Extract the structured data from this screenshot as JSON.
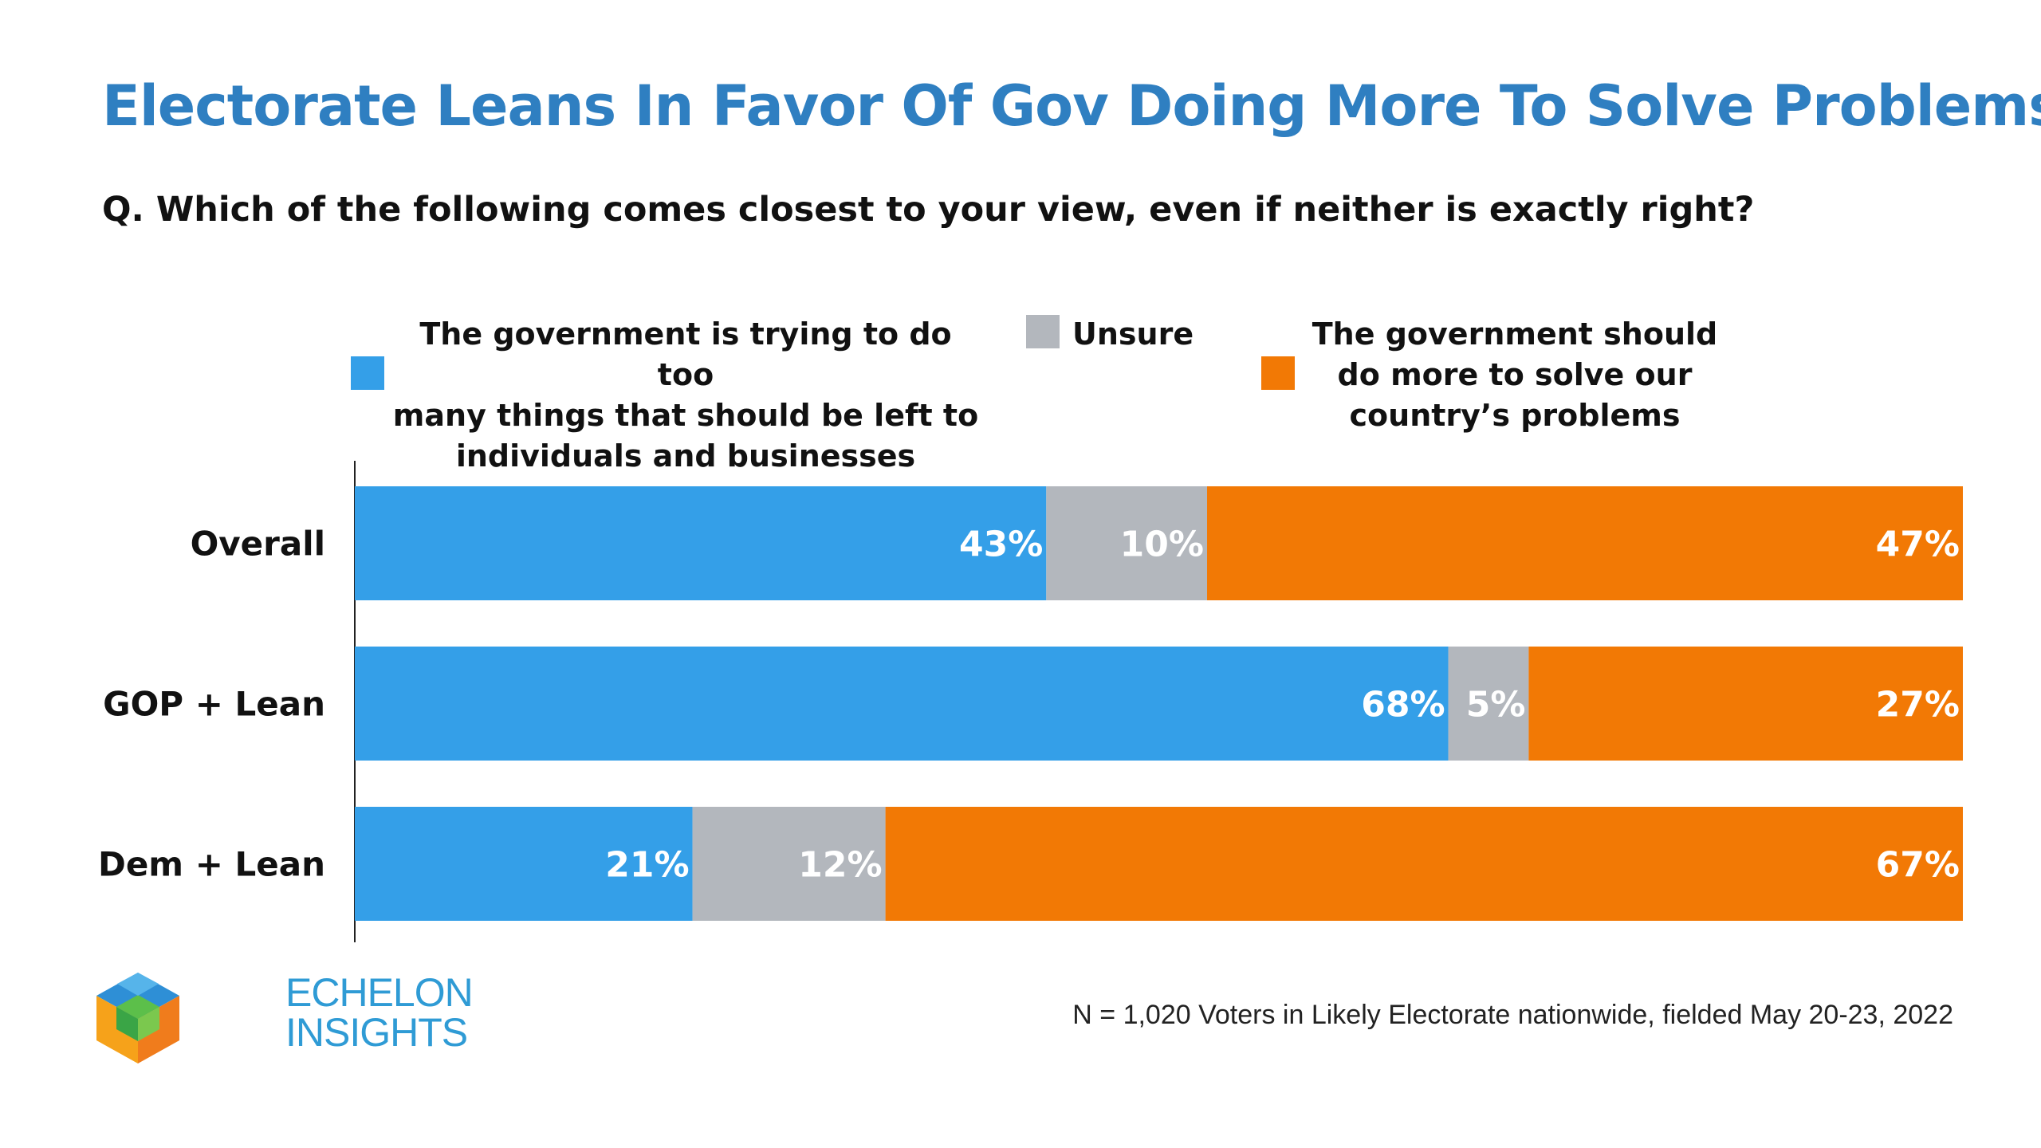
{
  "title": "Electorate Leans In Favor Of Gov Doing More To Solve Problems",
  "question": "Q. Which of the following comes closest to your view, even if neither is exactly right?",
  "footnote": "N = 1,020 Voters in Likely Electorate nationwide, fielded May 20-23, 2022",
  "logo": {
    "line1": "ECHELON",
    "line2": "INSIGHTS"
  },
  "colors": {
    "left": "#349fe8",
    "unsure": "#b3b7bd",
    "right": "#f27905",
    "title": "#2f7fc1"
  },
  "legend": {
    "left": [
      "The government is trying to do too",
      "many things that should be left to",
      "individuals and businesses"
    ],
    "unsure": [
      "Unsure"
    ],
    "right": [
      "The government should",
      "do more to solve our",
      "country’s problems"
    ]
  },
  "chart_data": {
    "type": "bar",
    "orientation": "horizontal",
    "stacked": true,
    "categories": [
      "Overall",
      "GOP + Lean",
      "Dem + Lean"
    ],
    "series": [
      {
        "name": "The government is trying to do too many things that should be left to individuals and businesses",
        "values": [
          43,
          68,
          21
        ]
      },
      {
        "name": "Unsure",
        "values": [
          10,
          5,
          12
        ]
      },
      {
        "name": "The government should do more to solve our country’s problems",
        "values": [
          47,
          27,
          67
        ]
      }
    ],
    "labels": [
      [
        "43%",
        "68%",
        "21%"
      ],
      [
        "10%",
        "5%",
        "12%"
      ],
      [
        "47%",
        "27%",
        "67%"
      ]
    ],
    "xlim": [
      0,
      100
    ],
    "grid": false,
    "legend_position": "top"
  }
}
